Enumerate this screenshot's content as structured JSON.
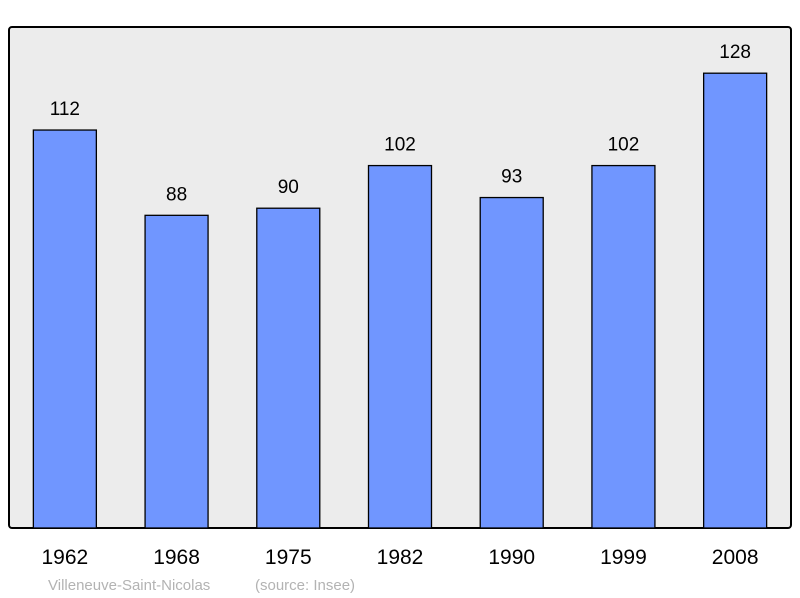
{
  "chart_data": {
    "type": "bar",
    "title": "",
    "xlabel": "",
    "ylabel": "",
    "categories": [
      "1962",
      "1968",
      "1975",
      "1982",
      "1990",
      "1999",
      "2008"
    ],
    "values": [
      112,
      88,
      90,
      102,
      93,
      102,
      128
    ],
    "data_labels": [
      "112",
      "88",
      "90",
      "102",
      "93",
      "102",
      "128"
    ],
    "ylim": [
      0,
      141
    ],
    "grid": false,
    "colors": {
      "bar": "#7096ff",
      "plot_background": "#ececec",
      "frame": "#000000",
      "caption": "#b3b3b3"
    }
  },
  "caption": {
    "place": "Villeneuve-Saint-Nicolas",
    "source": "(source: Insee)"
  }
}
